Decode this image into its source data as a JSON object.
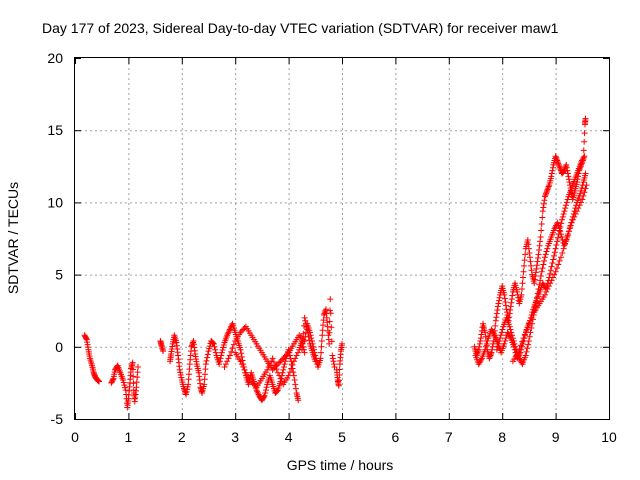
{
  "chart_data": {
    "type": "scatter",
    "title": "Day 177 of 2023, Sidereal Day-to-day VTEC variation (SDTVAR) for receiver maw1",
    "xlabel": "GPS time / hours",
    "ylabel": "SDTVAR / TECUs",
    "xlim": [
      0,
      10
    ],
    "ylim": [
      -5,
      20
    ],
    "xticks": [
      0,
      1,
      2,
      3,
      4,
      5,
      6,
      7,
      8,
      9,
      10
    ],
    "yticks": [
      -5,
      0,
      5,
      10,
      15,
      20
    ],
    "grid": true,
    "marker": "+",
    "color": "#ff0000",
    "series": [
      {
        "name": "SDTVAR",
        "segments": [
          [
            [
              0.18,
              0.8
            ],
            [
              0.22,
              0.5
            ],
            [
              0.25,
              -0.2
            ],
            [
              0.28,
              -0.8
            ],
            [
              0.32,
              -1.3
            ],
            [
              0.35,
              -1.8
            ],
            [
              0.38,
              -2.1
            ],
            [
              0.42,
              -2.3
            ],
            [
              0.45,
              -2.4
            ]
          ],
          [
            [
              0.68,
              -2.5
            ],
            [
              0.72,
              -2.2
            ],
            [
              0.75,
              -1.6
            ],
            [
              0.8,
              -1.3
            ],
            [
              0.85,
              -1.8
            ],
            [
              0.9,
              -2.3
            ],
            [
              0.95,
              -3.0
            ],
            [
              0.98,
              -4.2
            ],
            [
              1.0,
              -3.6
            ],
            [
              1.03,
              -2.5
            ],
            [
              1.05,
              -1.5
            ],
            [
              1.08,
              -1.1
            ],
            [
              1.1,
              -3.0
            ],
            [
              1.12,
              -3.8
            ],
            [
              1.15,
              -2.8
            ],
            [
              1.18,
              -1.4
            ]
          ],
          [
            [
              1.6,
              0.4
            ],
            [
              1.62,
              0.1
            ],
            [
              1.65,
              -0.3
            ]
          ],
          [
            [
              1.78,
              -1.0
            ],
            [
              1.8,
              -0.5
            ],
            [
              1.83,
              0.2
            ],
            [
              1.86,
              0.8
            ],
            [
              1.9,
              0.3
            ],
            [
              1.93,
              -0.6
            ],
            [
              1.96,
              -1.6
            ],
            [
              2.0,
              -2.3
            ],
            [
              2.04,
              -2.9
            ],
            [
              2.08,
              -3.3
            ],
            [
              2.12,
              -2.6
            ],
            [
              2.15,
              -1.2
            ],
            [
              2.18,
              0.0
            ],
            [
              2.22,
              0.4
            ],
            [
              2.25,
              -0.5
            ],
            [
              2.28,
              -1.2
            ],
            [
              2.32,
              -1.8
            ],
            [
              2.35,
              -2.8
            ],
            [
              2.38,
              -3.2
            ],
            [
              2.42,
              -2.6
            ],
            [
              2.45,
              -1.2
            ],
            [
              2.5,
              -0.3
            ],
            [
              2.55,
              0.4
            ],
            [
              2.6,
              0.2
            ],
            [
              2.65,
              -0.6
            ],
            [
              2.7,
              -1.2
            ],
            [
              2.75,
              -0.4
            ],
            [
              2.8,
              0.3
            ],
            [
              2.85,
              0.8
            ],
            [
              2.9,
              1.2
            ],
            [
              2.95,
              1.6
            ],
            [
              3.0,
              1.0
            ],
            [
              3.05,
              0.4
            ],
            [
              3.1,
              -0.2
            ],
            [
              3.15,
              -1.2
            ],
            [
              3.2,
              -2.0
            ],
            [
              3.25,
              -2.6
            ],
            [
              3.3,
              -1.8
            ],
            [
              3.35,
              -2.4
            ],
            [
              3.4,
              -3.0
            ],
            [
              3.45,
              -3.4
            ],
            [
              3.5,
              -3.7
            ],
            [
              3.55,
              -3.4
            ],
            [
              3.6,
              -2.6
            ],
            [
              3.65,
              -2.0
            ],
            [
              3.7,
              -2.6
            ],
            [
              3.75,
              -3.2
            ],
            [
              3.8,
              -3.0
            ],
            [
              3.85,
              -2.4
            ],
            [
              3.9,
              -1.6
            ],
            [
              3.95,
              -0.8
            ],
            [
              4.0,
              -0.2
            ],
            [
              4.05,
              -1.0
            ],
            [
              4.1,
              -2.0
            ],
            [
              4.15,
              -3.2
            ],
            [
              4.18,
              -3.7
            ]
          ],
          [
            [
              2.8,
              -1.4
            ],
            [
              2.9,
              -0.6
            ],
            [
              3.0,
              0.4
            ],
            [
              3.1,
              1.0
            ],
            [
              3.2,
              1.4
            ],
            [
              3.3,
              0.8
            ],
            [
              3.4,
              0.2
            ],
            [
              3.5,
              -0.4
            ],
            [
              3.6,
              -1.0
            ],
            [
              3.7,
              -1.6
            ],
            [
              3.8,
              -1.2
            ],
            [
              3.9,
              -0.8
            ],
            [
              4.0,
              -0.4
            ],
            [
              4.1,
              0.2
            ],
            [
              4.2,
              0.8
            ],
            [
              4.3,
              0.4
            ],
            [
              4.35,
              1.6
            ],
            [
              4.4,
              1.0
            ],
            [
              4.45,
              0.2
            ],
            [
              4.5,
              -0.6
            ],
            [
              4.55,
              -1.4
            ],
            [
              4.6,
              -0.8
            ],
            [
              4.63,
              0.8
            ],
            [
              4.66,
              2.2
            ],
            [
              4.7,
              2.6
            ],
            [
              4.73,
              1.4
            ],
            [
              4.76,
              0.2
            ],
            [
              4.78,
              3.3
            ],
            [
              4.82,
              -0.6
            ],
            [
              4.86,
              -1.4
            ]
          ],
          [
            [
              3.0,
              -0.4
            ],
            [
              3.1,
              -1.0
            ],
            [
              3.2,
              -1.8
            ],
            [
              3.3,
              -2.4
            ],
            [
              3.4,
              -2.8
            ],
            [
              3.5,
              -2.2
            ],
            [
              3.6,
              -1.6
            ],
            [
              3.7,
              -0.8
            ],
            [
              3.8,
              -1.8
            ],
            [
              3.9,
              -2.6
            ],
            [
              4.0,
              -2.0
            ],
            [
              4.1,
              -1.0
            ],
            [
              4.2,
              -0.2
            ],
            [
              4.25,
              0.4
            ],
            [
              4.3,
              -0.4
            ]
          ],
          [
            [
              4.25,
              -0.2
            ],
            [
              4.3,
              2.0
            ],
            [
              4.35,
              1.2
            ],
            [
              4.4,
              0.2
            ],
            [
              4.45,
              -0.4
            ],
            [
              4.5,
              -1.0
            ]
          ],
          [
            [
              4.9,
              -1.6
            ],
            [
              4.92,
              -2.3
            ],
            [
              4.94,
              -2.7
            ],
            [
              4.96,
              -1.2
            ],
            [
              4.98,
              -0.3
            ],
            [
              5.0,
              0.2
            ]
          ],
          [
            [
              7.48,
              0.0
            ],
            [
              7.52,
              -0.6
            ],
            [
              7.56,
              -0.2
            ],
            [
              7.6,
              0.6
            ],
            [
              7.64,
              1.6
            ],
            [
              7.68,
              1.0
            ],
            [
              7.72,
              -0.2
            ],
            [
              7.76,
              -0.8
            ],
            [
              7.8,
              -0.4
            ],
            [
              7.84,
              0.4
            ],
            [
              7.88,
              1.8
            ],
            [
              7.92,
              2.8
            ],
            [
              7.96,
              3.6
            ],
            [
              8.0,
              4.2
            ],
            [
              8.04,
              3.6
            ],
            [
              8.08,
              2.6
            ],
            [
              8.12,
              1.8
            ],
            [
              8.16,
              2.8
            ],
            [
              8.2,
              3.8
            ],
            [
              8.24,
              4.4
            ],
            [
              8.28,
              3.8
            ],
            [
              8.32,
              3.0
            ],
            [
              8.36,
              3.6
            ],
            [
              8.4,
              5.2
            ],
            [
              8.44,
              6.8
            ],
            [
              8.48,
              7.4
            ],
            [
              8.52,
              6.2
            ],
            [
              8.56,
              5.0
            ],
            [
              8.6,
              4.4
            ],
            [
              8.64,
              5.4
            ],
            [
              8.68,
              6.4
            ],
            [
              8.72,
              7.6
            ],
            [
              8.76,
              9.4
            ],
            [
              8.8,
              10.4
            ],
            [
              8.84,
              10.8
            ],
            [
              8.88,
              11.2
            ],
            [
              8.92,
              11.8
            ],
            [
              8.96,
              12.6
            ],
            [
              9.0,
              13.2
            ],
            [
              9.04,
              12.8
            ],
            [
              9.08,
              12.4
            ],
            [
              9.12,
              12.0
            ],
            [
              9.16,
              12.2
            ],
            [
              9.2,
              12.6
            ],
            [
              9.24,
              11.8
            ],
            [
              9.28,
              11.0
            ],
            [
              9.32,
              10.2
            ],
            [
              9.36,
              10.8
            ],
            [
              9.4,
              11.4
            ],
            [
              9.44,
              12.2
            ],
            [
              9.48,
              12.6
            ],
            [
              9.52,
              13.0
            ],
            [
              9.55,
              15.4
            ],
            [
              9.56,
              15.8
            ]
          ],
          [
            [
              7.5,
              -0.6
            ],
            [
              7.56,
              -1.2
            ],
            [
              7.62,
              -0.8
            ],
            [
              7.68,
              -0.2
            ],
            [
              7.74,
              0.6
            ],
            [
              7.8,
              1.2
            ],
            [
              7.86,
              0.8
            ],
            [
              7.92,
              0.2
            ],
            [
              7.98,
              -0.4
            ],
            [
              8.04,
              0.2
            ],
            [
              8.1,
              1.0
            ],
            [
              8.16,
              0.6
            ],
            [
              8.22,
              0.0
            ],
            [
              8.28,
              -0.8
            ],
            [
              8.34,
              -0.4
            ],
            [
              8.4,
              0.4
            ],
            [
              8.46,
              1.2
            ],
            [
              8.52,
              1.8
            ],
            [
              8.58,
              2.6
            ],
            [
              8.64,
              3.2
            ],
            [
              8.7,
              3.8
            ],
            [
              8.76,
              4.4
            ],
            [
              8.82,
              4.0
            ],
            [
              8.88,
              4.8
            ],
            [
              8.94,
              5.8
            ],
            [
              9.0,
              6.8
            ],
            [
              9.06,
              7.8
            ],
            [
              9.12,
              8.8
            ],
            [
              9.18,
              9.6
            ],
            [
              9.24,
              10.4
            ],
            [
              9.3,
              11.0
            ],
            [
              9.36,
              11.6
            ],
            [
              9.42,
              12.2
            ],
            [
              9.48,
              12.8
            ],
            [
              9.54,
              13.2
            ]
          ],
          [
            [
              7.9,
              -0.2
            ],
            [
              7.96,
              0.6
            ],
            [
              8.02,
              1.4
            ],
            [
              8.08,
              2.0
            ],
            [
              8.14,
              1.4
            ],
            [
              8.2,
              0.6
            ],
            [
              8.26,
              -0.2
            ],
            [
              8.32,
              -0.8
            ],
            [
              8.38,
              -1.2
            ],
            [
              8.44,
              -0.6
            ],
            [
              8.5,
              0.4
            ],
            [
              8.56,
              1.6
            ],
            [
              8.62,
              2.8
            ],
            [
              8.68,
              4.0
            ],
            [
              8.74,
              5.2
            ],
            [
              8.8,
              6.2
            ],
            [
              8.86,
              7.0
            ],
            [
              8.92,
              7.6
            ],
            [
              8.98,
              8.2
            ],
            [
              9.04,
              8.6
            ],
            [
              9.1,
              7.8
            ],
            [
              9.16,
              7.0
            ],
            [
              9.22,
              7.6
            ],
            [
              9.28,
              8.4
            ],
            [
              9.34,
              9.2
            ],
            [
              9.4,
              10.0
            ],
            [
              9.46,
              10.6
            ],
            [
              9.52,
              11.4
            ],
            [
              9.56,
              12.0
            ]
          ],
          [
            [
              8.2,
              -1.0
            ],
            [
              8.3,
              -0.4
            ],
            [
              8.4,
              0.6
            ],
            [
              8.5,
              1.6
            ],
            [
              8.6,
              2.4
            ],
            [
              8.7,
              3.0
            ],
            [
              8.8,
              3.6
            ],
            [
              8.9,
              4.4
            ],
            [
              9.0,
              5.2
            ],
            [
              9.1,
              6.2
            ],
            [
              9.2,
              7.4
            ],
            [
              9.3,
              8.6
            ],
            [
              9.4,
              9.4
            ],
            [
              9.5,
              10.2
            ],
            [
              9.58,
              11.2
            ]
          ]
        ]
      }
    ]
  }
}
